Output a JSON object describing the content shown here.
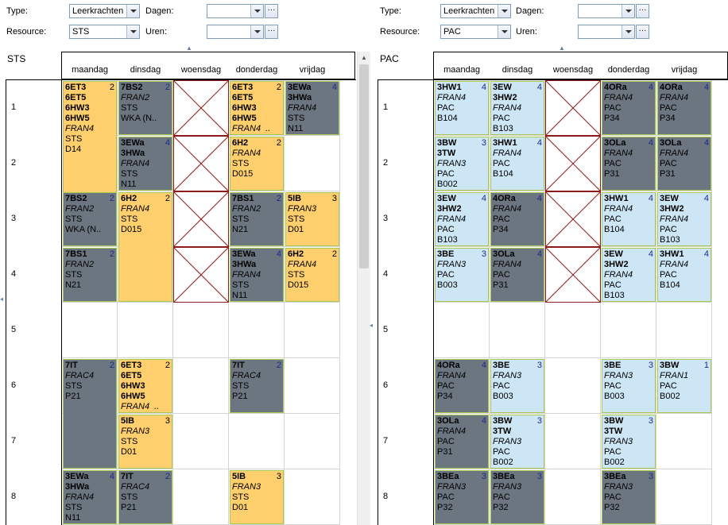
{
  "left": {
    "type_label": "Type:",
    "type_value": "Leerkrachten",
    "resource_label": "Resource:",
    "resource_value": "STS",
    "dagen_label": "Dagen:",
    "uren_label": "Uren:",
    "panel_title": "STS"
  },
  "right": {
    "type_label": "Type:",
    "type_value": "Leerkrachten",
    "resource_label": "Resource:",
    "resource_value": "PAC",
    "dagen_label": "Dagen:",
    "uren_label": "Uren:",
    "panel_title": "PAC"
  },
  "days": [
    "maandag",
    "dinsdag",
    "woensdag",
    "donderdag",
    "vrijdag"
  ],
  "hours": [
    "1",
    "2",
    "3",
    "4",
    "5",
    "6",
    "7",
    "8"
  ],
  "dots_label": "···",
  "left_cells": [
    {
      "day": 0,
      "hour": 0,
      "span": 3,
      "color": "yellow",
      "num": "2",
      "lines": [
        {
          "t": "6ET3",
          "s": "b"
        },
        {
          "t": "6ET5",
          "s": "b"
        },
        {
          "t": "6HW3",
          "s": "b"
        },
        {
          "t": "6HW5",
          "s": "b"
        },
        {
          "t": "FRAN4",
          "s": "i"
        },
        {
          "t": "STS",
          "s": ""
        },
        {
          "t": "D14",
          "s": ""
        }
      ]
    },
    {
      "day": 1,
      "hour": 0,
      "span": 1,
      "color": "gray",
      "num": "2",
      "lines": [
        {
          "t": "7BS2",
          "s": "b"
        },
        {
          "t": "FRAN2",
          "s": "i"
        },
        {
          "t": "STS",
          "s": ""
        },
        {
          "t": "WKA (N..",
          "s": ""
        }
      ]
    },
    {
      "day": 3,
      "hour": 0,
      "span": 1,
      "color": "yellow",
      "num": "2",
      "lines": [
        {
          "t": "6ET3",
          "s": "b"
        },
        {
          "t": "6ET5",
          "s": "b"
        },
        {
          "t": "6HW3",
          "s": "b"
        },
        {
          "t": "6HW5",
          "s": "b"
        },
        {
          "t": "FRAN4  ..",
          "s": "i"
        }
      ]
    },
    {
      "day": 4,
      "hour": 0,
      "span": 1,
      "color": "gray",
      "num": "4",
      "lines": [
        {
          "t": "3EWa",
          "s": "b"
        },
        {
          "t": "3HWa",
          "s": "b"
        },
        {
          "t": "FRAN4",
          "s": "i"
        },
        {
          "t": "STS",
          "s": ""
        },
        {
          "t": "N11",
          "s": ""
        }
      ]
    },
    {
      "day": 1,
      "hour": 1,
      "span": 1,
      "color": "gray",
      "num": "4",
      "lines": [
        {
          "t": "3EWa",
          "s": "b"
        },
        {
          "t": "3HWa",
          "s": "b"
        },
        {
          "t": "FRAN4",
          "s": "i"
        },
        {
          "t": "STS",
          "s": ""
        },
        {
          "t": "N11",
          "s": ""
        }
      ]
    },
    {
      "day": 3,
      "hour": 1,
      "span": 1,
      "color": "yellow",
      "num": "2",
      "lines": [
        {
          "t": "6H2",
          "s": "b"
        },
        {
          "t": "FRAN4",
          "s": "i"
        },
        {
          "t": "STS",
          "s": ""
        },
        {
          "t": "D015",
          "s": ""
        }
      ]
    },
    {
      "day": 0,
      "hour": 2,
      "span": 1,
      "color": "gray",
      "num": "2",
      "lines": [
        {
          "t": "7BS2",
          "s": "b"
        },
        {
          "t": "FRAN2",
          "s": "i"
        },
        {
          "t": "STS",
          "s": ""
        },
        {
          "t": "WKA (N..",
          "s": ""
        }
      ]
    },
    {
      "day": 1,
      "hour": 2,
      "span": 2,
      "color": "yellow",
      "num": "2",
      "lines": [
        {
          "t": "6H2",
          "s": "b"
        },
        {
          "t": "FRAN4",
          "s": "i"
        },
        {
          "t": "STS",
          "s": ""
        },
        {
          "t": "D015",
          "s": ""
        }
      ]
    },
    {
      "day": 3,
      "hour": 2,
      "span": 1,
      "color": "gray",
      "num": "2",
      "lines": [
        {
          "t": "7BS1",
          "s": "b"
        },
        {
          "t": "FRAN2",
          "s": "i"
        },
        {
          "t": "STS",
          "s": ""
        },
        {
          "t": "N21",
          "s": ""
        }
      ]
    },
    {
      "day": 4,
      "hour": 2,
      "span": 1,
      "color": "yellow",
      "num": "3",
      "lines": [
        {
          "t": "5IB",
          "s": "b"
        },
        {
          "t": "FRAN3",
          "s": "i"
        },
        {
          "t": "STS",
          "s": ""
        },
        {
          "t": "D01",
          "s": ""
        }
      ]
    },
    {
      "day": 0,
      "hour": 3,
      "span": 1,
      "color": "gray",
      "num": "2",
      "lines": [
        {
          "t": "7BS1",
          "s": "b"
        },
        {
          "t": "FRAN2",
          "s": "i"
        },
        {
          "t": "STS",
          "s": ""
        },
        {
          "t": "N21",
          "s": ""
        }
      ]
    },
    {
      "day": 3,
      "hour": 3,
      "span": 1,
      "color": "gray",
      "num": "4",
      "lines": [
        {
          "t": "3EWa",
          "s": "b"
        },
        {
          "t": "3HWa",
          "s": "b"
        },
        {
          "t": "FRAN4",
          "s": "i"
        },
        {
          "t": "STS",
          "s": ""
        },
        {
          "t": "N11",
          "s": ""
        }
      ]
    },
    {
      "day": 4,
      "hour": 3,
      "span": 1,
      "color": "yellow",
      "num": "2",
      "lines": [
        {
          "t": "6H2",
          "s": "b"
        },
        {
          "t": "FRAN4",
          "s": "i"
        },
        {
          "t": "STS",
          "s": ""
        },
        {
          "t": "D015",
          "s": ""
        }
      ]
    },
    {
      "day": 0,
      "hour": 5,
      "span": 2,
      "color": "gray",
      "num": "2",
      "lines": [
        {
          "t": "7IT",
          "s": "b"
        },
        {
          "t": "FRAC4",
          "s": "i"
        },
        {
          "t": "STS",
          "s": ""
        },
        {
          "t": "P21",
          "s": ""
        }
      ]
    },
    {
      "day": 1,
      "hour": 5,
      "span": 1,
      "color": "yellow",
      "num": "2",
      "lines": [
        {
          "t": "6ET3",
          "s": "b"
        },
        {
          "t": "6ET5",
          "s": "b"
        },
        {
          "t": "6HW3",
          "s": "b"
        },
        {
          "t": "6HW5",
          "s": "b"
        },
        {
          "t": "FRAN4  ..",
          "s": "i"
        }
      ]
    },
    {
      "day": 3,
      "hour": 5,
      "span": 1,
      "color": "gray",
      "num": "2",
      "lines": [
        {
          "t": "7IT",
          "s": "b"
        },
        {
          "t": "FRAC4",
          "s": "i"
        },
        {
          "t": "STS",
          "s": ""
        },
        {
          "t": "P21",
          "s": ""
        }
      ]
    },
    {
      "day": 1,
      "hour": 6,
      "span": 1,
      "color": "yellow",
      "num": "3",
      "lines": [
        {
          "t": "5IB",
          "s": "b"
        },
        {
          "t": "FRAN3",
          "s": "i"
        },
        {
          "t": "STS",
          "s": ""
        },
        {
          "t": "D01",
          "s": ""
        }
      ]
    },
    {
      "day": 0,
      "hour": 7,
      "span": 1,
      "color": "gray",
      "num": "4",
      "lines": [
        {
          "t": "3EWa",
          "s": "b"
        },
        {
          "t": "3HWa",
          "s": "b"
        },
        {
          "t": "FRAN4",
          "s": "i"
        },
        {
          "t": "STS",
          "s": ""
        },
        {
          "t": "N11",
          "s": ""
        }
      ]
    },
    {
      "day": 1,
      "hour": 7,
      "span": 1,
      "color": "gray",
      "num": "2",
      "lines": [
        {
          "t": "7IT",
          "s": "b"
        },
        {
          "t": "FRAC4",
          "s": "i"
        },
        {
          "t": "STS",
          "s": ""
        },
        {
          "t": "P21",
          "s": ""
        }
      ]
    },
    {
      "day": 3,
      "hour": 7,
      "span": 1,
      "color": "yellow",
      "num": "3",
      "lines": [
        {
          "t": "5IB",
          "s": "b"
        },
        {
          "t": "FRAN3",
          "s": "i"
        },
        {
          "t": "STS",
          "s": ""
        },
        {
          "t": "D01",
          "s": ""
        }
      ]
    }
  ],
  "right_cells": [
    {
      "day": 0,
      "hour": 0,
      "span": 1,
      "color": "blue",
      "num": "4",
      "lines": [
        {
          "t": "3HW1",
          "s": "b"
        },
        {
          "t": "FRAN4",
          "s": "i"
        },
        {
          "t": "PAC",
          "s": ""
        },
        {
          "t": "B104",
          "s": ""
        }
      ]
    },
    {
      "day": 1,
      "hour": 0,
      "span": 1,
      "color": "blue",
      "num": "4",
      "lines": [
        {
          "t": "3EW",
          "s": "b"
        },
        {
          "t": "3HW2",
          "s": "b"
        },
        {
          "t": "FRAN4",
          "s": "i"
        },
        {
          "t": "PAC",
          "s": ""
        },
        {
          "t": "B103",
          "s": ""
        }
      ]
    },
    {
      "day": 3,
      "hour": 0,
      "span": 1,
      "color": "gray",
      "num": "4",
      "lines": [
        {
          "t": "4ORa",
          "s": "b"
        },
        {
          "t": "FRAN4",
          "s": "i"
        },
        {
          "t": "PAC",
          "s": ""
        },
        {
          "t": "P34",
          "s": ""
        }
      ]
    },
    {
      "day": 4,
      "hour": 0,
      "span": 1,
      "color": "gray",
      "num": "4",
      "lines": [
        {
          "t": "4ORa",
          "s": "b"
        },
        {
          "t": "FRAN4",
          "s": "i"
        },
        {
          "t": "PAC",
          "s": ""
        },
        {
          "t": "P34",
          "s": ""
        }
      ]
    },
    {
      "day": 0,
      "hour": 1,
      "span": 1,
      "color": "blue",
      "num": "3",
      "lines": [
        {
          "t": "3BW",
          "s": "b"
        },
        {
          "t": "3TW",
          "s": "b"
        },
        {
          "t": "FRAN3",
          "s": "i"
        },
        {
          "t": "PAC",
          "s": ""
        },
        {
          "t": "B002",
          "s": ""
        }
      ]
    },
    {
      "day": 1,
      "hour": 1,
      "span": 1,
      "color": "blue",
      "num": "4",
      "lines": [
        {
          "t": "3HW1",
          "s": "b"
        },
        {
          "t": "FRAN4",
          "s": "i"
        },
        {
          "t": "PAC",
          "s": ""
        },
        {
          "t": "B104",
          "s": ""
        }
      ]
    },
    {
      "day": 3,
      "hour": 1,
      "span": 1,
      "color": "gray",
      "num": "4",
      "lines": [
        {
          "t": "3OLa",
          "s": "b"
        },
        {
          "t": "FRAN4",
          "s": "i"
        },
        {
          "t": "PAC",
          "s": ""
        },
        {
          "t": "P31",
          "s": ""
        }
      ]
    },
    {
      "day": 4,
      "hour": 1,
      "span": 1,
      "color": "gray",
      "num": "4",
      "lines": [
        {
          "t": "3OLa",
          "s": "b"
        },
        {
          "t": "FRAN4",
          "s": "i"
        },
        {
          "t": "PAC",
          "s": ""
        },
        {
          "t": "P31",
          "s": ""
        }
      ]
    },
    {
      "day": 0,
      "hour": 2,
      "span": 1,
      "color": "blue",
      "num": "4",
      "lines": [
        {
          "t": "3EW",
          "s": "b"
        },
        {
          "t": "3HW2",
          "s": "b"
        },
        {
          "t": "FRAN4",
          "s": "i"
        },
        {
          "t": "PAC",
          "s": ""
        },
        {
          "t": "B103",
          "s": ""
        }
      ]
    },
    {
      "day": 1,
      "hour": 2,
      "span": 1,
      "color": "gray",
      "num": "4",
      "lines": [
        {
          "t": "4ORa",
          "s": "b"
        },
        {
          "t": "FRAN4",
          "s": "i"
        },
        {
          "t": "PAC",
          "s": ""
        },
        {
          "t": "P34",
          "s": ""
        }
      ]
    },
    {
      "day": 3,
      "hour": 2,
      "span": 1,
      "color": "blue",
      "num": "4",
      "lines": [
        {
          "t": "3HW1",
          "s": "b"
        },
        {
          "t": "FRAN4",
          "s": "i"
        },
        {
          "t": "PAC",
          "s": ""
        },
        {
          "t": "B104",
          "s": ""
        }
      ]
    },
    {
      "day": 4,
      "hour": 2,
      "span": 1,
      "color": "blue",
      "num": "4",
      "lines": [
        {
          "t": "3EW",
          "s": "b"
        },
        {
          "t": "3HW2",
          "s": "b"
        },
        {
          "t": "FRAN4",
          "s": "i"
        },
        {
          "t": "PAC",
          "s": ""
        },
        {
          "t": "B103",
          "s": ""
        }
      ]
    },
    {
      "day": 0,
      "hour": 3,
      "span": 1,
      "color": "blue",
      "num": "3",
      "lines": [
        {
          "t": "3BE",
          "s": "b"
        },
        {
          "t": "FRAN3",
          "s": "i"
        },
        {
          "t": "PAC",
          "s": ""
        },
        {
          "t": "B003",
          "s": ""
        }
      ]
    },
    {
      "day": 1,
      "hour": 3,
      "span": 1,
      "color": "gray",
      "num": "4",
      "lines": [
        {
          "t": "3OLa",
          "s": "b"
        },
        {
          "t": "FRAN4",
          "s": "i"
        },
        {
          "t": "PAC",
          "s": ""
        },
        {
          "t": "P31",
          "s": ""
        }
      ]
    },
    {
      "day": 3,
      "hour": 3,
      "span": 1,
      "color": "blue",
      "num": "4",
      "lines": [
        {
          "t": "3EW",
          "s": "b"
        },
        {
          "t": "3HW2",
          "s": "b"
        },
        {
          "t": "FRAN4",
          "s": "i"
        },
        {
          "t": "PAC",
          "s": ""
        },
        {
          "t": "B103",
          "s": ""
        }
      ]
    },
    {
      "day": 4,
      "hour": 3,
      "span": 1,
      "color": "blue",
      "num": "4",
      "lines": [
        {
          "t": "3HW1",
          "s": "b"
        },
        {
          "t": "FRAN4",
          "s": "i"
        },
        {
          "t": "PAC",
          "s": ""
        },
        {
          "t": "B104",
          "s": ""
        }
      ]
    },
    {
      "day": 0,
      "hour": 5,
      "span": 1,
      "color": "gray",
      "num": "4",
      "lines": [
        {
          "t": "4ORa",
          "s": "b"
        },
        {
          "t": "FRAN4",
          "s": "i"
        },
        {
          "t": "PAC",
          "s": ""
        },
        {
          "t": "P34",
          "s": ""
        }
      ]
    },
    {
      "day": 1,
      "hour": 5,
      "span": 1,
      "color": "blue",
      "num": "3",
      "lines": [
        {
          "t": "3BE",
          "s": "b"
        },
        {
          "t": "FRAN3",
          "s": "i"
        },
        {
          "t": "PAC",
          "s": ""
        },
        {
          "t": "B003",
          "s": ""
        }
      ]
    },
    {
      "day": 3,
      "hour": 5,
      "span": 1,
      "color": "blue",
      "num": "3",
      "lines": [
        {
          "t": "3BE",
          "s": "b"
        },
        {
          "t": "FRAN3",
          "s": "i"
        },
        {
          "t": "PAC",
          "s": ""
        },
        {
          "t": "B003",
          "s": ""
        }
      ]
    },
    {
      "day": 4,
      "hour": 5,
      "span": 1,
      "color": "blue",
      "num": "1",
      "lines": [
        {
          "t": "3BW",
          "s": "b"
        },
        {
          "t": "FRAN1",
          "s": "i"
        },
        {
          "t": "PAC",
          "s": ""
        },
        {
          "t": "B002",
          "s": ""
        }
      ]
    },
    {
      "day": 0,
      "hour": 6,
      "span": 1,
      "color": "gray",
      "num": "4",
      "lines": [
        {
          "t": "3OLa",
          "s": "b"
        },
        {
          "t": "FRAN4",
          "s": "i"
        },
        {
          "t": "PAC",
          "s": ""
        },
        {
          "t": "P31",
          "s": ""
        }
      ]
    },
    {
      "day": 1,
      "hour": 6,
      "span": 1,
      "color": "blue",
      "num": "3",
      "lines": [
        {
          "t": "3BW",
          "s": "b"
        },
        {
          "t": "3TW",
          "s": "b"
        },
        {
          "t": "FRAN3",
          "s": "i"
        },
        {
          "t": "PAC",
          "s": ""
        },
        {
          "t": "B002",
          "s": ""
        }
      ]
    },
    {
      "day": 3,
      "hour": 6,
      "span": 1,
      "color": "blue",
      "num": "3",
      "lines": [
        {
          "t": "3BW",
          "s": "b"
        },
        {
          "t": "3TW",
          "s": "b"
        },
        {
          "t": "FRAN3",
          "s": "i"
        },
        {
          "t": "PAC",
          "s": ""
        },
        {
          "t": "B002",
          "s": ""
        }
      ]
    },
    {
      "day": 0,
      "hour": 7,
      "span": 1,
      "color": "gray",
      "num": "3",
      "lines": [
        {
          "t": "3BEa",
          "s": "b"
        },
        {
          "t": "FRAN3",
          "s": "i"
        },
        {
          "t": "PAC",
          "s": ""
        },
        {
          "t": "P32",
          "s": ""
        }
      ]
    },
    {
      "day": 1,
      "hour": 7,
      "span": 1,
      "color": "gray",
      "num": "3",
      "lines": [
        {
          "t": "3BEa",
          "s": "b"
        },
        {
          "t": "FRAN3",
          "s": "i"
        },
        {
          "t": "PAC",
          "s": ""
        },
        {
          "t": "P32",
          "s": ""
        }
      ]
    },
    {
      "day": 3,
      "hour": 7,
      "span": 1,
      "color": "gray",
      "num": "3",
      "lines": [
        {
          "t": "3BEa",
          "s": "b"
        },
        {
          "t": "FRAN3",
          "s": "i"
        },
        {
          "t": "PAC",
          "s": ""
        },
        {
          "t": "P32",
          "s": ""
        }
      ]
    }
  ],
  "blocked_hours": [
    0,
    1,
    2,
    3
  ]
}
